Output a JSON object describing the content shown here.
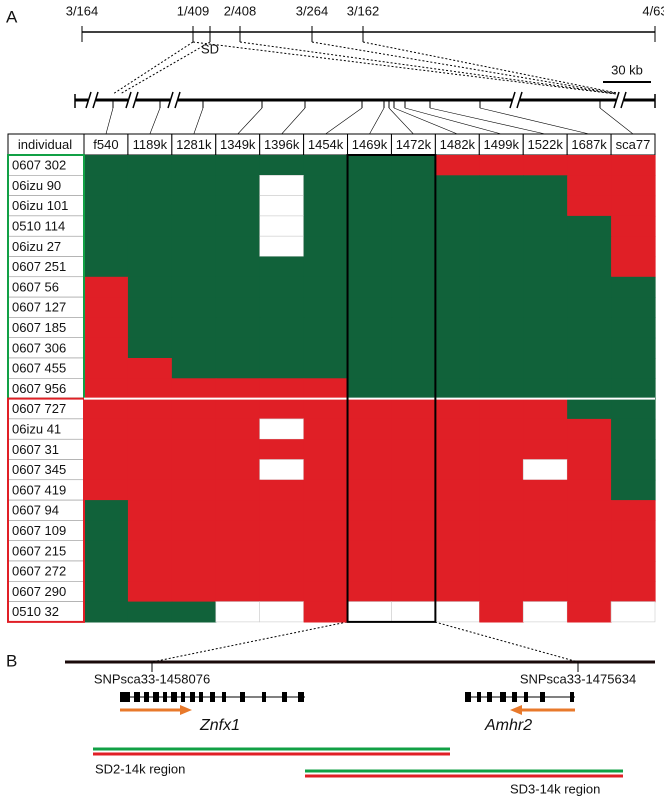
{
  "panel_a": {
    "label": "A",
    "top_track": [
      "3/164",
      "1/409",
      "2/408",
      "3/264",
      "3/162",
      "4/63"
    ],
    "sd_label": "SD",
    "scale_label": "30 kb",
    "header": "individual",
    "markers": [
      "f540",
      "1189k",
      "1281k",
      "1349k",
      "1396k",
      "1454k",
      "1469k",
      "1472k",
      "1482k",
      "1499k",
      "1522k",
      "1687k",
      "sca77"
    ],
    "genotype_colors": {
      "G": "#11623a",
      "R": "#e01f26",
      "W": "#ffffff"
    },
    "groups": [
      {
        "color": "#11a045",
        "rows": [
          {
            "name": "0607 302",
            "cells": [
              "G",
              "G",
              "G",
              "G",
              "G",
              "G",
              "G",
              "G",
              "R",
              "R",
              "R",
              "R",
              "R"
            ]
          },
          {
            "name": "06izu 90",
            "cells": [
              "G",
              "G",
              "G",
              "G",
              "W",
              "G",
              "G",
              "G",
              "G",
              "G",
              "G",
              "R",
              "R"
            ]
          },
          {
            "name": "06izu 101",
            "cells": [
              "G",
              "G",
              "G",
              "G",
              "W",
              "G",
              "G",
              "G",
              "G",
              "G",
              "G",
              "R",
              "R"
            ]
          },
          {
            "name": "0510 114",
            "cells": [
              "G",
              "G",
              "G",
              "G",
              "W",
              "G",
              "G",
              "G",
              "G",
              "G",
              "G",
              "G",
              "R"
            ]
          },
          {
            "name": "06izu 27",
            "cells": [
              "G",
              "G",
              "G",
              "G",
              "W",
              "G",
              "G",
              "G",
              "G",
              "G",
              "G",
              "G",
              "R"
            ]
          },
          {
            "name": "0607 251",
            "cells": [
              "G",
              "G",
              "G",
              "G",
              "G",
              "G",
              "G",
              "G",
              "G",
              "G",
              "G",
              "G",
              "R"
            ]
          },
          {
            "name": "0607 56",
            "cells": [
              "R",
              "G",
              "G",
              "G",
              "G",
              "G",
              "G",
              "G",
              "G",
              "G",
              "G",
              "G",
              "G"
            ]
          },
          {
            "name": "0607 127",
            "cells": [
              "R",
              "G",
              "G",
              "G",
              "G",
              "G",
              "G",
              "G",
              "G",
              "G",
              "G",
              "G",
              "G"
            ]
          },
          {
            "name": "0607 185",
            "cells": [
              "R",
              "G",
              "G",
              "G",
              "G",
              "G",
              "G",
              "G",
              "G",
              "G",
              "G",
              "G",
              "G"
            ]
          },
          {
            "name": "0607 306",
            "cells": [
              "R",
              "G",
              "G",
              "G",
              "G",
              "G",
              "G",
              "G",
              "G",
              "G",
              "G",
              "G",
              "G"
            ]
          },
          {
            "name": "0607 455",
            "cells": [
              "R",
              "R",
              "G",
              "G",
              "G",
              "G",
              "G",
              "G",
              "G",
              "G",
              "G",
              "G",
              "G"
            ]
          },
          {
            "name": "0607 956",
            "cells": [
              "R",
              "R",
              "R",
              "R",
              "R",
              "R",
              "G",
              "G",
              "G",
              "G",
              "G",
              "G",
              "G"
            ]
          }
        ]
      },
      {
        "color": "#e01f26",
        "rows": [
          {
            "name": "0607 727",
            "cells": [
              "R",
              "R",
              "R",
              "R",
              "R",
              "R",
              "R",
              "R",
              "R",
              "R",
              "R",
              "G",
              "G"
            ]
          },
          {
            "name": "06izu 41",
            "cells": [
              "R",
              "R",
              "R",
              "R",
              "W",
              "R",
              "R",
              "R",
              "R",
              "R",
              "R",
              "R",
              "G"
            ]
          },
          {
            "name": "0607 31",
            "cells": [
              "R",
              "R",
              "R",
              "R",
              "R",
              "R",
              "R",
              "R",
              "R",
              "R",
              "R",
              "R",
              "G"
            ]
          },
          {
            "name": "0607 345",
            "cells": [
              "R",
              "R",
              "R",
              "R",
              "W",
              "R",
              "R",
              "R",
              "R",
              "R",
              "W",
              "R",
              "G"
            ]
          },
          {
            "name": "0607 419",
            "cells": [
              "R",
              "R",
              "R",
              "R",
              "R",
              "R",
              "R",
              "R",
              "R",
              "R",
              "R",
              "R",
              "G"
            ]
          },
          {
            "name": "0607 94",
            "cells": [
              "G",
              "R",
              "R",
              "R",
              "R",
              "R",
              "R",
              "R",
              "R",
              "R",
              "R",
              "R",
              "R"
            ]
          },
          {
            "name": "0607 109",
            "cells": [
              "G",
              "R",
              "R",
              "R",
              "R",
              "R",
              "R",
              "R",
              "R",
              "R",
              "R",
              "R",
              "R"
            ]
          },
          {
            "name": "0607 215",
            "cells": [
              "G",
              "R",
              "R",
              "R",
              "R",
              "R",
              "R",
              "R",
              "R",
              "R",
              "R",
              "R",
              "R"
            ]
          },
          {
            "name": "0607 272",
            "cells": [
              "G",
              "R",
              "R",
              "R",
              "R",
              "R",
              "R",
              "R",
              "R",
              "R",
              "R",
              "R",
              "R"
            ]
          },
          {
            "name": "0607 290",
            "cells": [
              "G",
              "R",
              "R",
              "R",
              "R",
              "R",
              "R",
              "R",
              "R",
              "R",
              "R",
              "R",
              "R"
            ]
          },
          {
            "name": "0510 32",
            "cells": [
              "G",
              "G",
              "G",
              "W",
              "W",
              "R",
              "W",
              "W",
              "W",
              "R",
              "W",
              "R",
              "W"
            ]
          }
        ]
      }
    ]
  },
  "panel_b": {
    "label": "B",
    "snp_left": "SNPsca33-1458076",
    "snp_right": "SNPsca33-1475634",
    "gene_left": "Znfx1",
    "gene_right": "Amhr2",
    "region_1": "SD2-14k region",
    "region_2": "SD3-14k region"
  }
}
